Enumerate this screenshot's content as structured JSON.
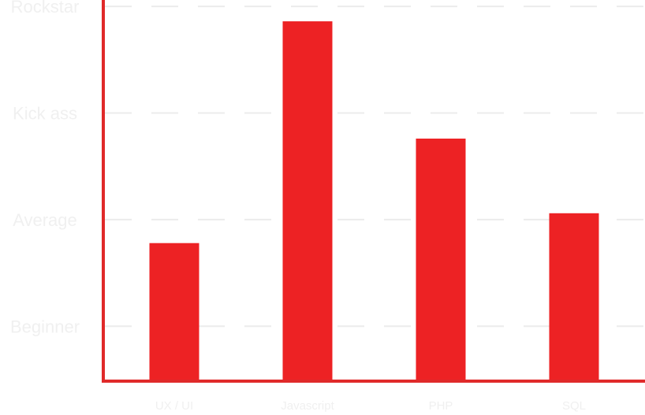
{
  "chart_data": {
    "type": "bar",
    "title": "",
    "xlabel": "",
    "ylabel": "",
    "categories": [
      "UX / UI",
      "Javascript",
      "PHP",
      "SQL"
    ],
    "values": [
      1.78,
      3.86,
      2.76,
      2.06
    ],
    "ylim": [
      0.5,
      4.06
    ],
    "y_ticks": [
      {
        "value": 1,
        "label": "Beginner"
      },
      {
        "value": 2,
        "label": "Average"
      },
      {
        "value": 3,
        "label": "Kick ass"
      },
      {
        "value": 4,
        "label": "Rockstar"
      }
    ],
    "grid": true,
    "colors": {
      "bar": "#ed2224",
      "axis": "#e02a2a",
      "grid": "#ececec",
      "tick_text": "#f0f0f0"
    }
  }
}
